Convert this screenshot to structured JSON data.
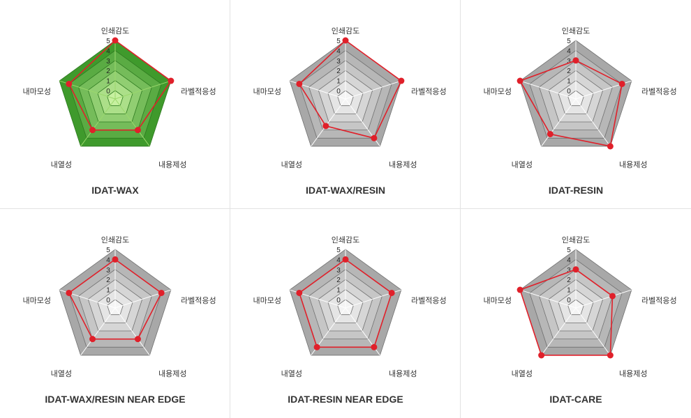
{
  "chart_data": [
    {
      "type": "radar",
      "title": "IDAT-WAX",
      "axes": [
        "인쇄감도",
        "라벨적응성",
        "내용제성",
        "내열성",
        "내마모성"
      ],
      "ticks": [
        "0",
        "1",
        "2",
        "3",
        "4",
        "5"
      ],
      "rmax": 5,
      "values": [
        5,
        5,
        3,
        3,
        4
      ],
      "theme": "green",
      "colors": {
        "fill_outer": "#3f9a2c",
        "fill_inner": "#c7f0a0",
        "series": "#e0202a"
      }
    },
    {
      "type": "radar",
      "title": "IDAT-WAX/RESIN",
      "axes": [
        "인쇄감도",
        "라벨적응성",
        "내용제성",
        "내열성",
        "내마모성"
      ],
      "ticks": [
        "0",
        "1",
        "2",
        "3",
        "4",
        "5"
      ],
      "rmax": 5,
      "values": [
        5,
        5,
        4,
        2.5,
        4
      ],
      "theme": "gray",
      "colors": {
        "fill_outer": "#a8a8a8",
        "fill_inner": "#f4f4f4",
        "series": "#e0202a"
      }
    },
    {
      "type": "radar",
      "title": "IDAT-RESIN",
      "axes": [
        "인쇄감도",
        "라벨적응성",
        "내용제성",
        "내열성",
        "내마모성"
      ],
      "ticks": [
        "0",
        "1",
        "2",
        "3",
        "4",
        "5"
      ],
      "rmax": 5,
      "values": [
        3,
        4,
        5,
        3.5,
        5
      ],
      "theme": "gray",
      "colors": {
        "fill_outer": "#a8a8a8",
        "fill_inner": "#f4f4f4",
        "series": "#e0202a"
      }
    },
    {
      "type": "radar",
      "title": "IDAT-WAX/RESIN NEAR EDGE",
      "axes": [
        "인쇄감도",
        "라벨적응성",
        "내용제성",
        "내열성",
        "내마모성"
      ],
      "ticks": [
        "0",
        "1",
        "2",
        "3",
        "4",
        "5"
      ],
      "rmax": 5,
      "values": [
        4,
        4,
        3,
        3,
        4
      ],
      "theme": "gray",
      "colors": {
        "fill_outer": "#a8a8a8",
        "fill_inner": "#f4f4f4",
        "series": "#e0202a"
      }
    },
    {
      "type": "radar",
      "title": "IDAT-RESIN NEAR EDGE",
      "axes": [
        "인쇄감도",
        "라벨적응성",
        "내용제성",
        "내열성",
        "내마모성"
      ],
      "ticks": [
        "0",
        "1",
        "2",
        "3",
        "4",
        "5"
      ],
      "rmax": 5,
      "values": [
        4,
        4,
        4,
        4,
        4
      ],
      "theme": "gray",
      "colors": {
        "fill_outer": "#a8a8a8",
        "fill_inner": "#f4f4f4",
        "series": "#e0202a"
      }
    },
    {
      "type": "radar",
      "title": "IDAT-CARE",
      "axes": [
        "인쇄감도",
        "라벨적응성",
        "내용제성",
        "내열성",
        "내마모성"
      ],
      "ticks": [
        "0",
        "1",
        "2",
        "3",
        "4",
        "5"
      ],
      "rmax": 5,
      "values": [
        3,
        3,
        5,
        5,
        5
      ],
      "theme": "gray",
      "colors": {
        "fill_outer": "#a8a8a8",
        "fill_inner": "#f4f4f4",
        "series": "#e0202a"
      }
    }
  ]
}
